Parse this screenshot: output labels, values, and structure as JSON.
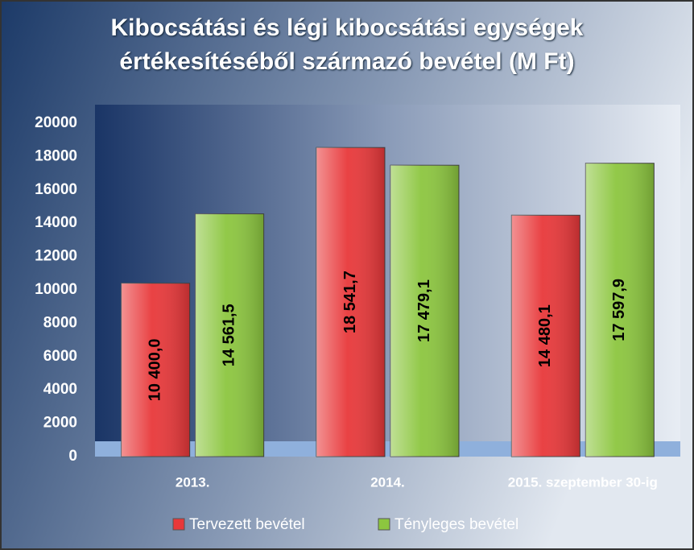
{
  "chart_data": {
    "type": "bar",
    "title": "Kibocsátási és légi kibocsátási egységek értékesítéséből származó bevétel (M Ft)",
    "categories": [
      "2013.",
      "2014.",
      "2015. szeptember 30-ig"
    ],
    "series": [
      {
        "name": "Tervezett bevétel",
        "color": "#e8383a",
        "values": [
          10400.0,
          18541.7,
          14480.1
        ],
        "value_labels": [
          "10 400,0",
          "18 541,7",
          "14 480,1"
        ]
      },
      {
        "name": "Tényleges bevétel",
        "color": "#8cc63f",
        "values": [
          14561.5,
          17479.1,
          17597.9
        ],
        "value_labels": [
          "14 561,5",
          "17 479,1",
          "17 597,9"
        ]
      }
    ],
    "ylim": [
      0,
      20000
    ],
    "yticks": [
      0,
      2000,
      4000,
      6000,
      8000,
      10000,
      12000,
      14000,
      16000,
      18000,
      20000
    ],
    "legend": "bottom"
  }
}
